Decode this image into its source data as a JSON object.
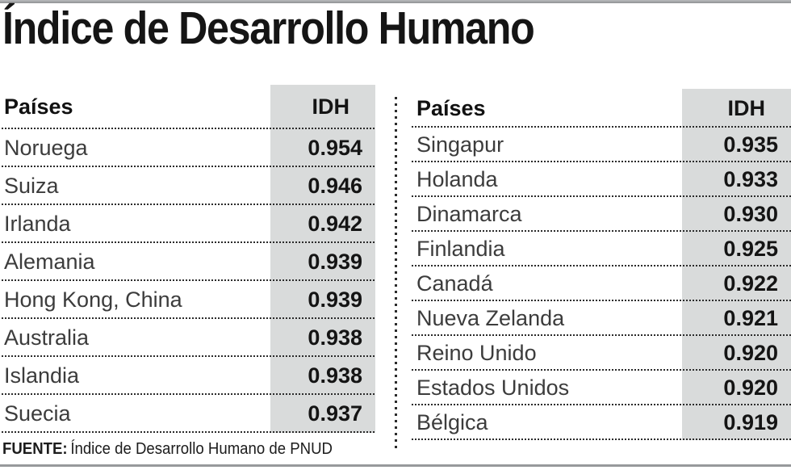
{
  "chart_data": {
    "type": "table",
    "title": "Índice de Desarrollo Humano",
    "column_headers": {
      "country": "Países",
      "value": "IDH"
    },
    "left_table": {
      "rows": [
        {
          "country": "Noruega",
          "idh": "0.954"
        },
        {
          "country": "Suiza",
          "idh": "0.946"
        },
        {
          "country": "Irlanda",
          "idh": "0.942"
        },
        {
          "country": "Alemania",
          "idh": "0.939"
        },
        {
          "country": "Hong Kong, China",
          "idh": "0.939"
        },
        {
          "country": "Australia",
          "idh": "0.938"
        },
        {
          "country": "Islandia",
          "idh": "0.938"
        },
        {
          "country": "Suecia",
          "idh": "0.937"
        }
      ]
    },
    "right_table": {
      "rows": [
        {
          "country": "Singapur",
          "idh": "0.935"
        },
        {
          "country": "Holanda",
          "idh": "0.933"
        },
        {
          "country": "Dinamarca",
          "idh": "0.930"
        },
        {
          "country": "Finlandia",
          "idh": "0.925"
        },
        {
          "country": "Canadá",
          "idh": "0.922"
        },
        {
          "country": "Nueva Zelanda",
          "idh": "0.921"
        },
        {
          "country": "Reino Unido",
          "idh": "0.920"
        },
        {
          "country": "Estados Unidos",
          "idh": "0.920"
        },
        {
          "country": "Bélgica",
          "idh": "0.919"
        }
      ]
    },
    "source_label": "FUENTE:",
    "source_text": "Índice de Desarrollo Humano de PNUD"
  },
  "colors": {
    "band_bg": "#d9dbdb",
    "rule_gray": "#97999b",
    "dot_color": "#2b2b2b",
    "title_color": "#151515",
    "country_color": "#3c3c3c",
    "value_color": "#141414"
  }
}
